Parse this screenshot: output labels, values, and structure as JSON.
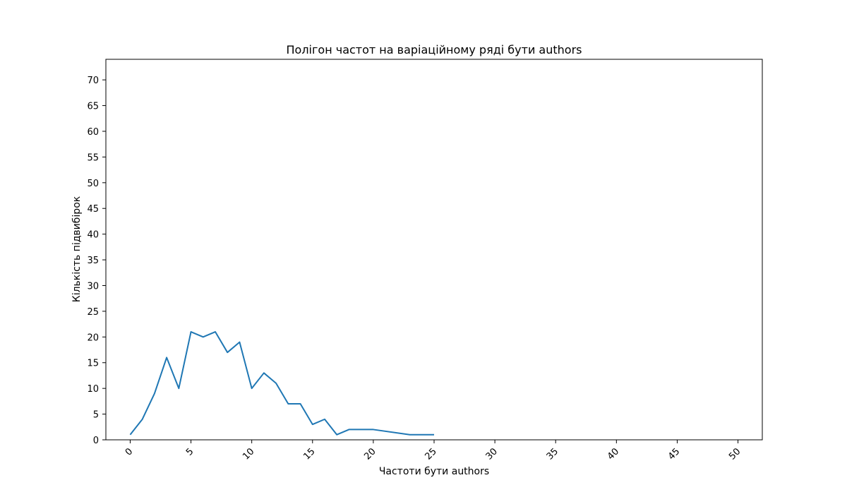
{
  "chart_data": {
    "type": "line",
    "title": "Полігон частот на варіаційному ряді бути authors",
    "xlabel": "Частоти бути authors",
    "ylabel": "Кількість підвибірок",
    "xlim": [
      -2,
      52
    ],
    "ylim": [
      0,
      74
    ],
    "x_ticks": [
      0,
      5,
      10,
      15,
      20,
      25,
      30,
      35,
      40,
      45,
      50
    ],
    "y_ticks": [
      0,
      5,
      10,
      15,
      20,
      25,
      30,
      35,
      40,
      45,
      50,
      55,
      60,
      65,
      70
    ],
    "x_tick_rotation": "45deg",
    "grid": false,
    "series": [
      {
        "color": "#1f77b4",
        "x": [
          0,
          1,
          2,
          3,
          4,
          5,
          6,
          7,
          8,
          9,
          10,
          11,
          12,
          13,
          14,
          15,
          16,
          17,
          18,
          20,
          23,
          25
        ],
        "y": [
          1,
          4,
          9,
          16,
          10,
          21,
          20,
          21,
          17,
          19,
          10,
          13,
          11,
          7,
          7,
          3,
          4,
          1,
          2,
          2,
          1,
          1
        ]
      }
    ]
  }
}
